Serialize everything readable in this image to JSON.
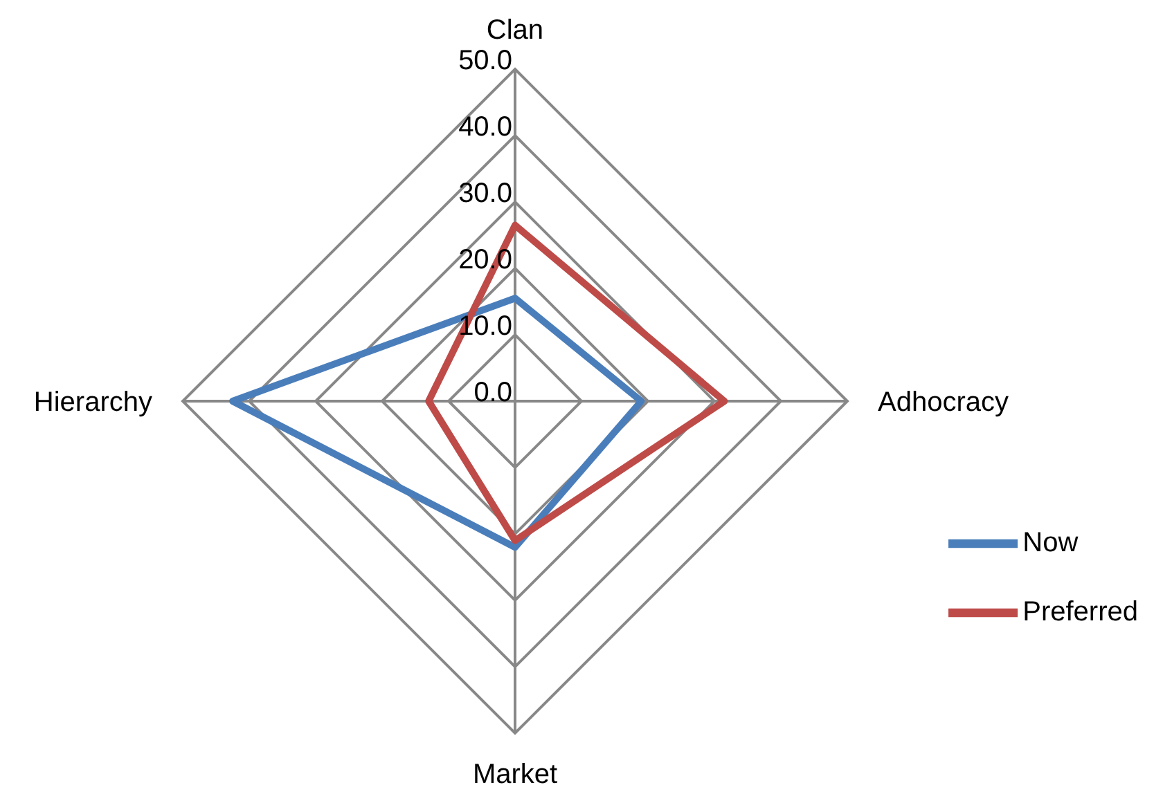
{
  "chart_data": {
    "type": "radar",
    "categories": [
      "Clan",
      "Adhocracy",
      "Market",
      "Hierarchy"
    ],
    "series": [
      {
        "name": "Now",
        "color": "#4a7ebb",
        "values": [
          15.5,
          19,
          22,
          42.5
        ]
      },
      {
        "name": "Preferred",
        "color": "#be4b48",
        "values": [
          26.5,
          31.5,
          21,
          13
        ]
      }
    ],
    "ylim": [
      0,
      50
    ],
    "yticks": [
      {
        "value": 0,
        "label": "0.0"
      },
      {
        "value": 10,
        "label": "10.0"
      },
      {
        "value": 20,
        "label": "20.0"
      },
      {
        "value": 30,
        "label": "30.0"
      },
      {
        "value": 40,
        "label": "40.0"
      },
      {
        "value": 50,
        "label": "50.0"
      }
    ],
    "grid": true,
    "legend": "right",
    "marker": "none"
  }
}
